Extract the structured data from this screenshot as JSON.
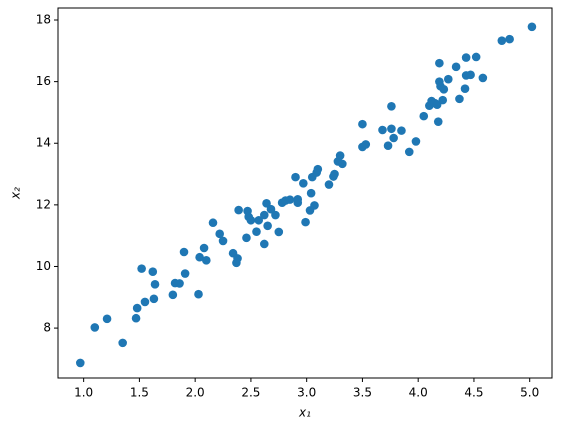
{
  "chart_data": {
    "type": "scatter",
    "xlabel": "x₁",
    "ylabel": "x₂",
    "color": "#1f77b4",
    "xlim": [
      0.77,
      5.2
    ],
    "ylim": [
      6.38,
      18.39
    ],
    "xticks": [
      {
        "value": 1,
        "label": "1.0"
      },
      {
        "value": 1.5,
        "label": "1.5"
      },
      {
        "value": 2,
        "label": "2.0"
      },
      {
        "value": 2.5,
        "label": "2.5"
      },
      {
        "value": 3,
        "label": "3.0"
      },
      {
        "value": 3.5,
        "label": "3.5"
      },
      {
        "value": 4,
        "label": "4.0"
      },
      {
        "value": 4.5,
        "label": "4.5"
      },
      {
        "value": 5,
        "label": "5.0"
      }
    ],
    "yticks": [
      8,
      10,
      12,
      14,
      16,
      18
    ],
    "x": [
      0.97,
      1.1,
      1.21,
      1.35,
      1.47,
      1.48,
      1.52,
      1.55,
      1.62,
      1.63,
      1.64,
      1.8,
      1.82,
      1.86,
      1.9,
      1.91,
      2.03,
      2.04,
      2.08,
      2.1,
      2.16,
      2.22,
      2.25,
      2.34,
      2.37,
      2.38,
      2.39,
      2.46,
      2.47,
      2.48,
      2.5,
      2.55,
      2.57,
      2.62,
      2.62,
      2.64,
      2.65,
      2.68,
      2.72,
      2.75,
      2.78,
      2.81,
      2.85,
      2.9,
      2.92,
      2.92,
      2.97,
      2.99,
      3.04,
      3.05,
      3.07,
      3.03,
      3.09,
      3.1,
      3.2,
      3.24,
      3.25,
      3.28,
      3.3,
      3.32,
      3.5,
      3.5,
      3.53,
      3.68,
      3.73,
      3.76,
      3.76,
      3.78,
      3.85,
      3.92,
      3.98,
      4.05,
      4.1,
      4.12,
      4.15,
      4.17,
      4.18,
      4.19,
      4.19,
      4.2,
      4.22,
      4.23,
      4.27,
      4.34,
      4.37,
      4.42,
      4.43,
      4.43,
      4.47,
      4.52,
      4.58,
      4.75,
      4.82,
      5.02
    ],
    "values": [
      6.87,
      8.02,
      8.3,
      7.52,
      8.32,
      8.65,
      9.93,
      8.85,
      9.83,
      8.95,
      9.42,
      9.08,
      9.46,
      9.45,
      10.47,
      9.77,
      9.1,
      10.3,
      10.6,
      10.2,
      11.42,
      11.06,
      10.83,
      10.43,
      10.12,
      10.26,
      11.83,
      10.93,
      11.8,
      11.61,
      11.5,
      11.13,
      11.5,
      10.73,
      11.67,
      12.05,
      11.32,
      11.86,
      11.67,
      11.12,
      12.07,
      12.14,
      12.17,
      12.9,
      12.07,
      12.18,
      12.7,
      11.44,
      12.38,
      12.9,
      11.98,
      11.82,
      13.05,
      13.16,
      12.66,
      12.92,
      13.0,
      13.41,
      13.6,
      13.33,
      14.62,
      13.88,
      13.96,
      14.43,
      13.92,
      14.47,
      15.2,
      14.17,
      14.41,
      13.72,
      14.06,
      14.88,
      15.22,
      15.37,
      15.3,
      15.25,
      14.7,
      16.0,
      16.6,
      15.85,
      15.4,
      15.75,
      16.08,
      16.48,
      15.44,
      15.77,
      16.2,
      16.78,
      16.22,
      16.8,
      16.12,
      17.33,
      17.38,
      17.78
    ]
  }
}
